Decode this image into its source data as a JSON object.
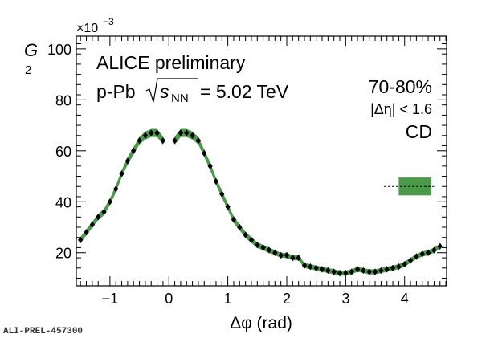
{
  "chart_data": {
    "type": "line",
    "title": "ALICE preliminary",
    "system_prefix": "p-Pb",
    "energy_symbol": "s",
    "energy_subscript": "NN",
    "energy_value": "= 5.02 TeV",
    "centrality": "70-80%",
    "eta_cut": "|Δη| < 1.6",
    "correlation": "CD",
    "xlabel": "Δφ (rad)",
    "ylabel": "G",
    "ylabel_subscript": "2",
    "y_multiplier": "×10",
    "y_multiplier_exp": "−3",
    "xlim": [
      -1.5708,
      4.7124
    ],
    "ylim": [
      7,
      105
    ],
    "x_ticks": [
      -1,
      0,
      1,
      2,
      3,
      4
    ],
    "x_tick_labels": [
      "−1",
      "0",
      "1",
      "2",
      "3",
      "4"
    ],
    "y_ticks": [
      20,
      40,
      60,
      80,
      100
    ],
    "y_tick_labels": [
      "20",
      "40",
      "60",
      "80",
      "100"
    ],
    "series": [
      {
        "name": "G2 CD 70-80%",
        "marker": "diamond",
        "band_color": "#4a9a4a",
        "x": [
          -1.5,
          -1.4,
          -1.3,
          -1.2,
          -1.1,
          -1.0,
          -0.9,
          -0.8,
          -0.7,
          -0.6,
          -0.5,
          -0.4,
          -0.3,
          -0.2,
          -0.1,
          0.1,
          0.2,
          0.3,
          0.4,
          0.5,
          0.6,
          0.7,
          0.8,
          0.9,
          1.0,
          1.1,
          1.2,
          1.3,
          1.4,
          1.5,
          1.6,
          1.7,
          1.8,
          1.9,
          2.0,
          2.1,
          2.2,
          2.3,
          2.4,
          2.5,
          2.6,
          2.7,
          2.8,
          2.9,
          3.0,
          3.1,
          3.2,
          3.3,
          3.4,
          3.5,
          3.6,
          3.7,
          3.8,
          3.9,
          4.0,
          4.1,
          4.2,
          4.3,
          4.4,
          4.5,
          4.6
        ],
        "values": [
          25,
          28,
          31,
          34,
          36,
          40,
          45,
          51,
          56,
          60,
          64,
          66,
          67,
          67,
          64,
          64,
          67,
          67,
          66,
          64,
          59,
          54,
          48,
          43,
          38,
          33,
          30,
          27,
          25,
          23,
          22,
          21,
          20,
          19,
          19,
          18,
          18,
          15,
          14.5,
          14,
          13.5,
          13,
          12.5,
          12,
          12,
          12.5,
          13.5,
          13,
          12.5,
          12.5,
          13,
          13.5,
          14,
          14.5,
          15.5,
          17,
          18.5,
          19.5,
          20,
          21,
          22.5
        ],
        "band_halfwidth": [
          1.2,
          1.2,
          1.2,
          1.2,
          1.3,
          1.3,
          1.4,
          1.4,
          1.5,
          1.5,
          1.5,
          1.6,
          1.6,
          1.6,
          1.6,
          1.6,
          1.6,
          1.6,
          1.6,
          1.5,
          1.5,
          1.5,
          1.4,
          1.4,
          1.3,
          1.3,
          1.2,
          1.2,
          1.2,
          1.1,
          1.1,
          1.1,
          1.0,
          1.0,
          1.0,
          1.0,
          1.0,
          1.0,
          1.0,
          1.0,
          1.0,
          1.0,
          1.0,
          1.0,
          1.0,
          1.0,
          1.0,
          1.0,
          1.0,
          1.0,
          1.0,
          1.0,
          1.0,
          1.0,
          1.0,
          1.0,
          1.0,
          1.0,
          1.0,
          1.0,
          1.0
        ]
      }
    ],
    "reference_box": {
      "x_range": [
        3.9,
        4.45
      ],
      "center": 46,
      "halfwidth": 3.5,
      "color": "#4a9a4a"
    },
    "reference_line": {
      "y": 46,
      "x_range": [
        3.65,
        4.5
      ],
      "style": "dashed"
    }
  },
  "watermark": "ALI-PREL-457300"
}
